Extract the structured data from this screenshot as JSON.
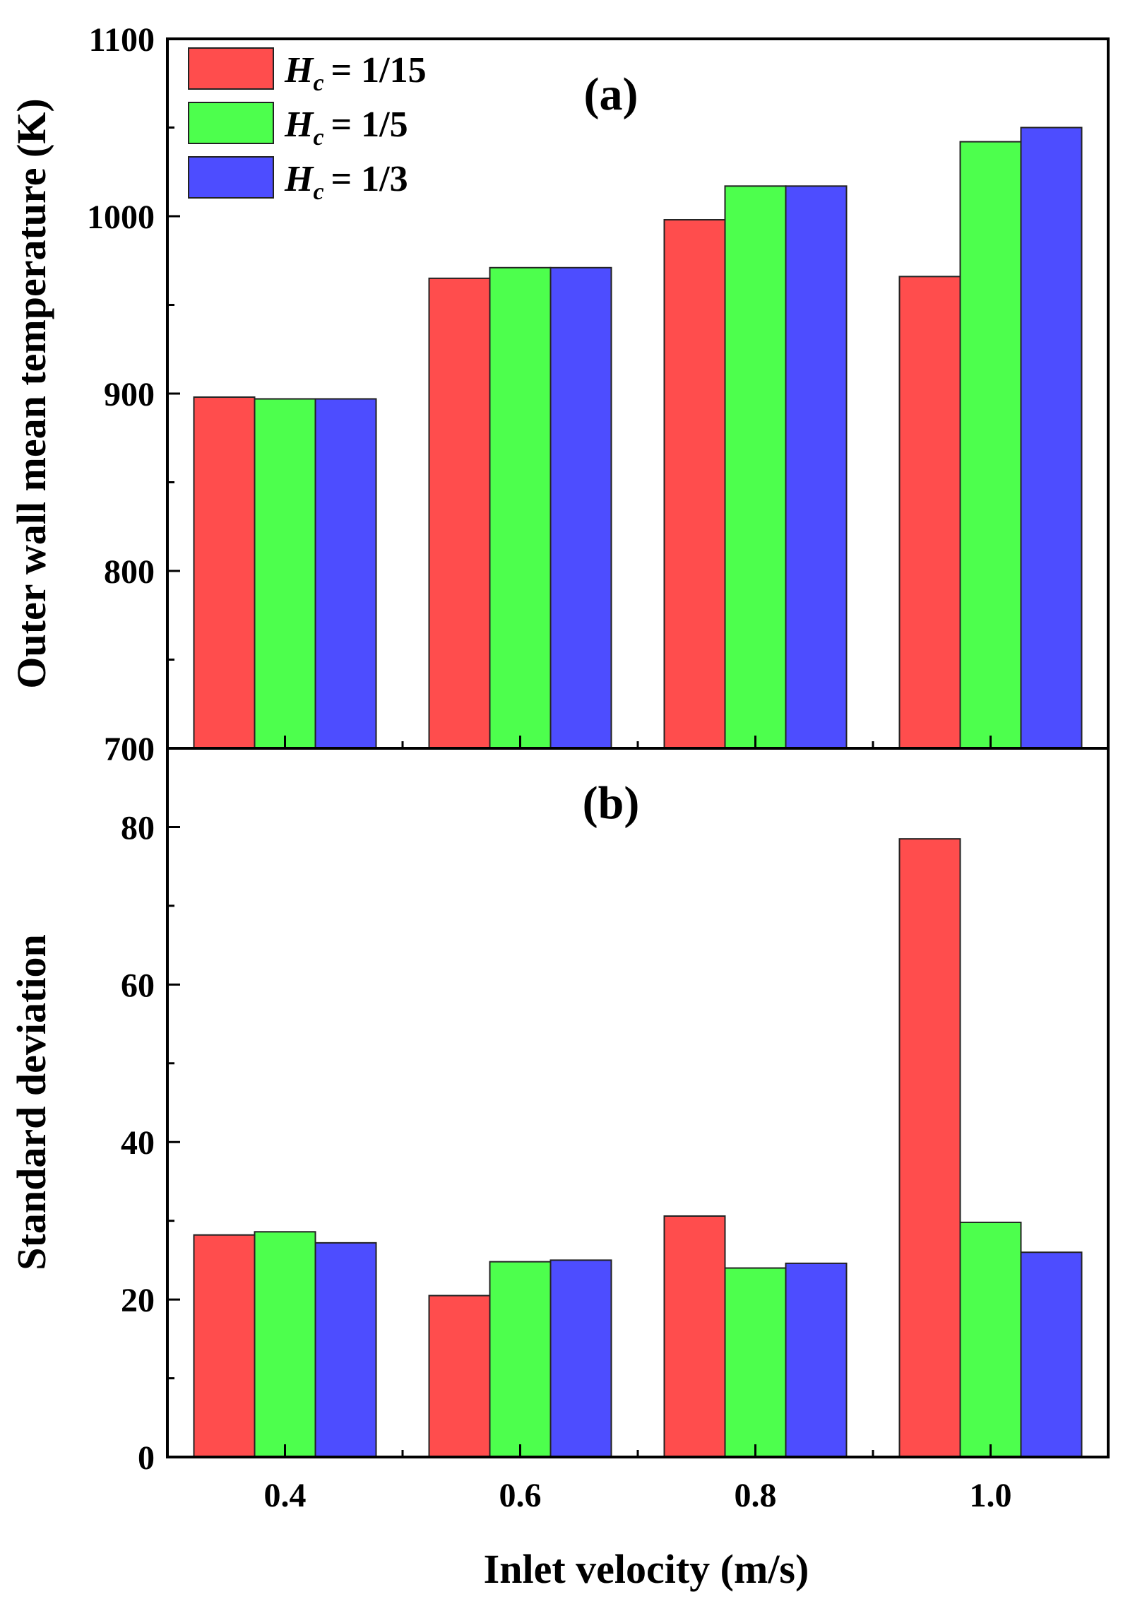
{
  "chart_data": [
    {
      "panel": "(a)",
      "type": "bar",
      "categories": [
        "0.4",
        "0.6",
        "0.8",
        "1.0"
      ],
      "series": [
        {
          "name": "1/15",
          "color": "#ff4d4d",
          "values": [
            898,
            965,
            998,
            966
          ]
        },
        {
          "name": "1/5",
          "color": "#4dff4d",
          "values": [
            897,
            971,
            1017,
            1042
          ]
        },
        {
          "name": "1/3",
          "color": "#4d4dff",
          "values": [
            897,
            971,
            1017,
            1050
          ]
        }
      ],
      "ylabel": "Outer wall mean temperature (K)",
      "ylim": [
        700,
        1100
      ],
      "yticks": [
        "700",
        "800",
        "900",
        "1000",
        "1100"
      ],
      "legend": {
        "position": "top-left",
        "symbol": "H",
        "subscript": "c",
        "labels": [
          "= 1/15",
          "= 1/5",
          "= 1/3"
        ]
      }
    },
    {
      "panel": "(b)",
      "type": "bar",
      "categories": [
        "0.4",
        "0.6",
        "0.8",
        "1.0"
      ],
      "series": [
        {
          "name": "1/15",
          "color": "#ff4d4d",
          "values": [
            28.2,
            20.5,
            30.6,
            78.5
          ]
        },
        {
          "name": "1/5",
          "color": "#4dff4d",
          "values": [
            28.6,
            24.8,
            24.0,
            29.8
          ]
        },
        {
          "name": "1/3",
          "color": "#4d4dff",
          "values": [
            27.2,
            25.0,
            24.6,
            26.0
          ]
        }
      ],
      "xlabel": "Inlet velocity (m/s)",
      "ylabel": "Standard deviation",
      "ylim": [
        0,
        90
      ],
      "yticks": [
        "0",
        "20",
        "40",
        "60",
        "80"
      ],
      "xticks": [
        "0.4",
        "0.6",
        "0.8",
        "1.0"
      ]
    }
  ]
}
